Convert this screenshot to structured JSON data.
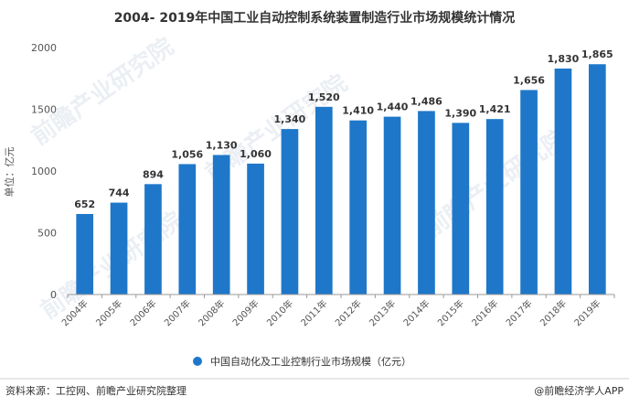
{
  "chart_data": {
    "type": "bar",
    "title": "2004- 2019年中国工业自动控制系统装置制造行业市场规模统计情况",
    "ylabel": "单位：亿元",
    "categories": [
      "2004年",
      "2005年",
      "2006年",
      "2007年",
      "2008年",
      "2009年",
      "2010年",
      "2011年",
      "2012年",
      "2013年",
      "2014年",
      "2015年",
      "2016年",
      "2017年",
      "2018年",
      "2019年"
    ],
    "series": [
      {
        "name": "中国自动化及工业控制行业市场规模（亿元）",
        "values": [
          652,
          744,
          894,
          1056,
          1130,
          1060,
          1340,
          1520,
          1410,
          1440,
          1486,
          1390,
          1421,
          1656,
          1830,
          1865
        ],
        "value_labels": [
          "652",
          "744",
          "894",
          "1,056",
          "1,130",
          "1,060",
          "1,340",
          "1,520",
          "1,410",
          "1,440",
          "1,486",
          "1,390",
          "1,421",
          "1,656",
          "1,830",
          "1,865"
        ],
        "color": "#1f77c9"
      }
    ],
    "yticks": [
      0,
      500,
      1000,
      1500,
      2000
    ],
    "ylim": [
      0,
      2000
    ],
    "grid": false,
    "legend_position": "bottom-center"
  },
  "footer": {
    "source": "资料来源：工控网、前瞻产业研究院整理",
    "brand": "@前瞻经济学人APP"
  },
  "watermark_text": "前瞻产业研究院"
}
